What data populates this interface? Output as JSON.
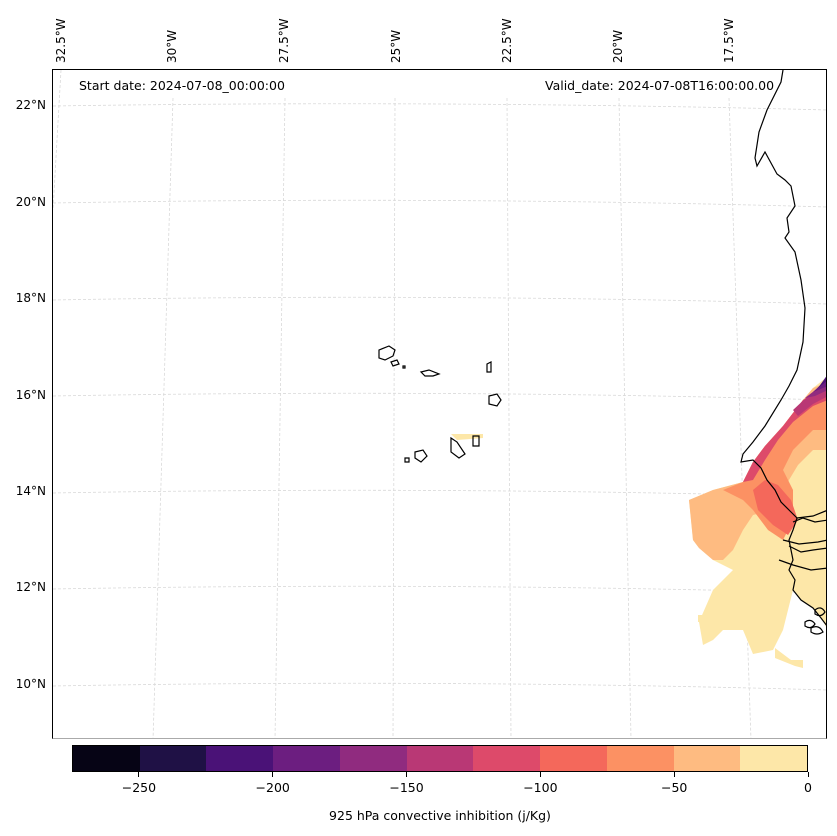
{
  "annotations": {
    "start_date": "Start date: 2024-07-08_00:00:00",
    "valid_date": "Valid_date: 2024-07-08T16:00:00.00"
  },
  "axes": {
    "lon_labels": [
      "32.5°W",
      "30°W",
      "27.5°W",
      "25°W",
      "22.5°W",
      "20°W",
      "17.5°W"
    ],
    "lat_labels": [
      "22°N",
      "20°N",
      "18°N",
      "16°N",
      "14°N",
      "12°N",
      "10°N"
    ]
  },
  "colorbar": {
    "title": "925 hPa convective inhibition (j/Kg)",
    "tick_labels": [
      "−250",
      "−200",
      "−150",
      "−100",
      "−50",
      "0"
    ],
    "tick_values": [
      -250,
      -200,
      -150,
      -100,
      -50,
      0
    ],
    "range": [
      -275,
      0
    ],
    "levels": [
      -275,
      -250,
      -225,
      -200,
      -175,
      -150,
      -125,
      -100,
      -75,
      -50,
      -25,
      0
    ],
    "colors": [
      "#060415",
      "#1f1145",
      "#4a1277",
      "#6c1e80",
      "#902b7f",
      "#b93875",
      "#dd4a6a",
      "#f4685b",
      "#fc9163",
      "#febb81",
      "#fde7a8"
    ]
  },
  "map": {
    "colormap": "magma",
    "gridline_color": "#d9d9d9",
    "coastline_color": "#000000"
  }
}
